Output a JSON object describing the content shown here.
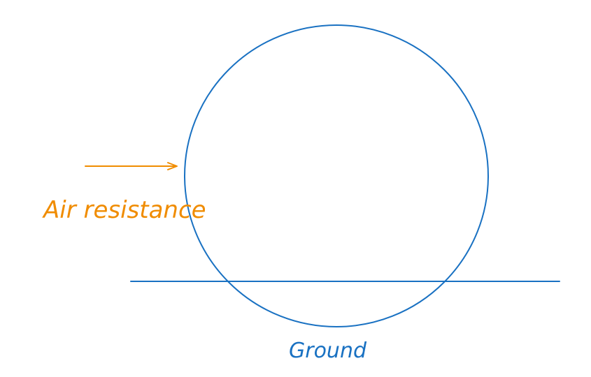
{
  "labels": {
    "air_resistance": "Air resistance",
    "ground": "Ground"
  },
  "colors": {
    "ball_stroke": "#1971c2",
    "ground_stroke": "#1971c2",
    "ground_label": "#1971c2",
    "arrow_stroke": "#f08c00",
    "air_label": "#f08c00",
    "background": "#ffffff"
  }
}
